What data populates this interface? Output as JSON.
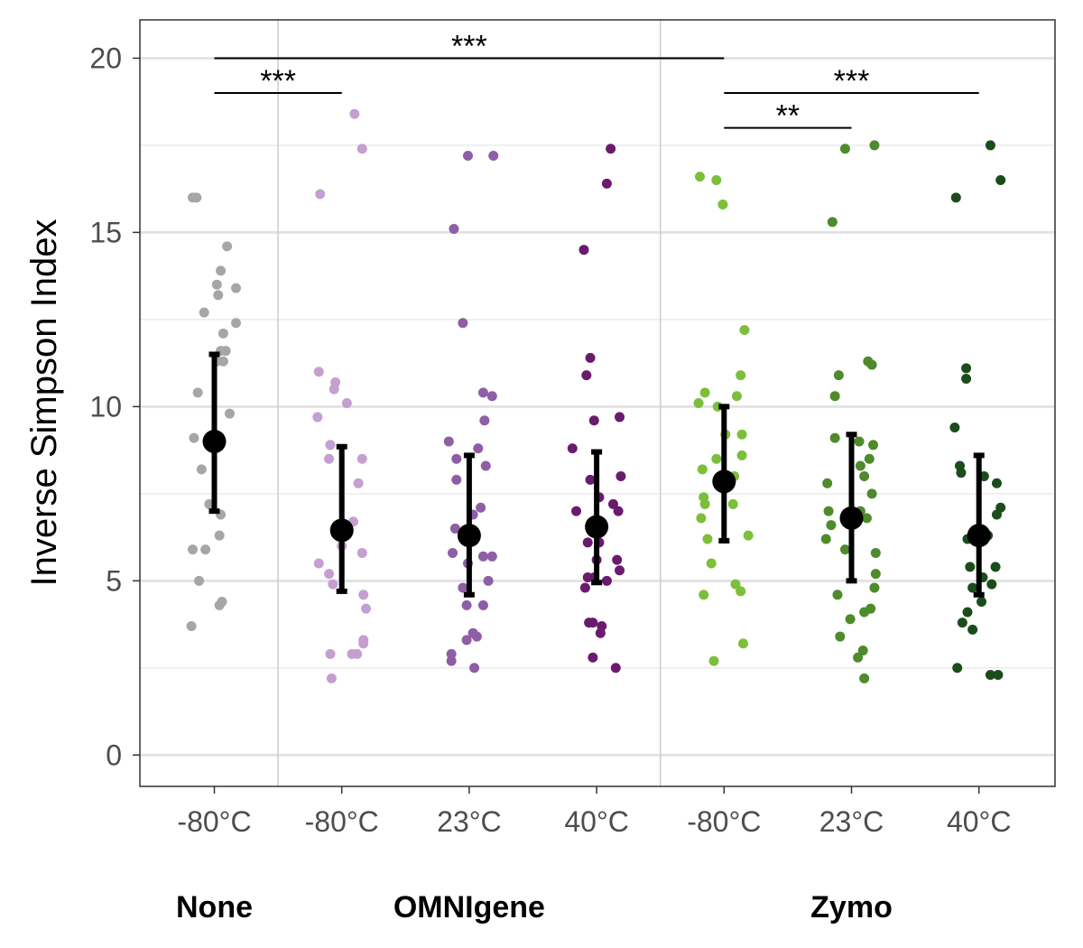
{
  "chart_data": {
    "type": "scatter",
    "ylabel": "Inverse Simpson Index",
    "ylim": [
      -0.9,
      21.1
    ],
    "yticks": [
      0,
      5,
      10,
      15,
      20
    ],
    "minor_gridlines": [
      2.5,
      7.5,
      12.5,
      17.5
    ],
    "categories": [
      "-80°C",
      "-80°C",
      "23°C",
      "40°C",
      "-80°C",
      "23°C",
      "40°C"
    ],
    "group_labels": [
      {
        "label": "None",
        "center": 1
      },
      {
        "label": "OMNIgene",
        "center": 3
      },
      {
        "label": "Zymo",
        "center": 6
      }
    ],
    "group_separators": [
      1.5,
      4.5
    ],
    "series": [
      {
        "group": "None",
        "condition": "-80°C",
        "color": "#a6a6a6",
        "mean": 9.0,
        "lower": 7.0,
        "upper": 11.5,
        "points": [
          [
            -0.17,
            16.0
          ],
          [
            -0.14,
            16.0
          ],
          [
            0.1,
            14.6
          ],
          [
            0.05,
            13.9
          ],
          [
            0.02,
            13.5
          ],
          [
            0.17,
            13.4
          ],
          [
            0.03,
            13.2
          ],
          [
            -0.08,
            12.7
          ],
          [
            0.17,
            12.4
          ],
          [
            0.07,
            12.1
          ],
          [
            0.05,
            11.6
          ],
          [
            0.09,
            11.6
          ],
          [
            0.02,
            11.3
          ],
          [
            0.07,
            11.3
          ],
          [
            -0.13,
            10.4
          ],
          [
            0.12,
            9.8
          ],
          [
            -0.16,
            9.1
          ],
          [
            -0.1,
            8.2
          ],
          [
            -0.04,
            7.2
          ],
          [
            0.05,
            6.9
          ],
          [
            0.04,
            6.3
          ],
          [
            -0.17,
            5.9
          ],
          [
            -0.07,
            5.9
          ],
          [
            -0.12,
            5.0
          ],
          [
            0.06,
            4.4
          ],
          [
            0.04,
            4.3
          ],
          [
            -0.18,
            3.7
          ]
        ]
      },
      {
        "group": "OMNIgene",
        "condition": "-80°C",
        "color": "#c49fcf",
        "mean": 6.45,
        "lower": 4.7,
        "upper": 8.85,
        "points": [
          [
            0.1,
            18.4
          ],
          [
            0.16,
            17.4
          ],
          [
            -0.17,
            16.1
          ],
          [
            -0.18,
            11.0
          ],
          [
            -0.05,
            10.7
          ],
          [
            -0.06,
            10.5
          ],
          [
            0.04,
            10.1
          ],
          [
            -0.19,
            9.7
          ],
          [
            -0.09,
            8.9
          ],
          [
            0.16,
            8.5
          ],
          [
            -0.1,
            8.5
          ],
          [
            0.13,
            7.8
          ],
          [
            0.09,
            6.7
          ],
          [
            0.0,
            6.0
          ],
          [
            0.16,
            5.8
          ],
          [
            -0.18,
            5.5
          ],
          [
            -0.1,
            5.2
          ],
          [
            -0.07,
            4.9
          ],
          [
            0.17,
            4.6
          ],
          [
            0.19,
            4.2
          ],
          [
            0.17,
            3.3
          ],
          [
            0.17,
            3.2
          ],
          [
            -0.09,
            2.9
          ],
          [
            0.08,
            2.9
          ],
          [
            0.12,
            2.9
          ],
          [
            -0.08,
            2.2
          ]
        ]
      },
      {
        "group": "OMNIgene",
        "condition": "23°C",
        "color": "#8e5ea6",
        "mean": 6.3,
        "lower": 4.6,
        "upper": 8.6,
        "points": [
          [
            -0.01,
            17.2
          ],
          [
            0.19,
            17.2
          ],
          [
            -0.12,
            15.1
          ],
          [
            -0.05,
            12.4
          ],
          [
            0.11,
            10.4
          ],
          [
            0.18,
            10.3
          ],
          [
            0.12,
            9.6
          ],
          [
            -0.16,
            9.0
          ],
          [
            0.07,
            8.8
          ],
          [
            -0.1,
            8.5
          ],
          [
            0.13,
            8.3
          ],
          [
            -0.1,
            7.9
          ],
          [
            0.09,
            7.1
          ],
          [
            0.03,
            6.9
          ],
          [
            -0.11,
            6.5
          ],
          [
            -0.13,
            5.8
          ],
          [
            0.11,
            5.7
          ],
          [
            0.18,
            5.7
          ],
          [
            -0.01,
            5.5
          ],
          [
            0.15,
            5.0
          ],
          [
            -0.05,
            4.8
          ],
          [
            0.11,
            4.3
          ],
          [
            -0.02,
            4.3
          ],
          [
            0.03,
            3.5
          ],
          [
            -0.02,
            3.3
          ],
          [
            0.06,
            3.4
          ],
          [
            -0.14,
            2.9
          ],
          [
            -0.14,
            2.7
          ],
          [
            0.04,
            2.5
          ]
        ]
      },
      {
        "group": "OMNIgene",
        "condition": "40°C",
        "color": "#6a1b6e",
        "mean": 6.55,
        "lower": 4.95,
        "upper": 8.7,
        "points": [
          [
            0.11,
            17.4
          ],
          [
            0.08,
            16.4
          ],
          [
            -0.1,
            14.5
          ],
          [
            -0.05,
            11.4
          ],
          [
            -0.08,
            10.9
          ],
          [
            0.18,
            9.7
          ],
          [
            -0.02,
            9.6
          ],
          [
            -0.19,
            8.8
          ],
          [
            0.19,
            8.0
          ],
          [
            -0.05,
            7.9
          ],
          [
            0.02,
            7.4
          ],
          [
            0.13,
            7.2
          ],
          [
            0.17,
            7.0
          ],
          [
            -0.16,
            7.0
          ],
          [
            -0.07,
            6.1
          ],
          [
            0.02,
            6.1
          ],
          [
            0.0,
            5.6
          ],
          [
            0.16,
            5.6
          ],
          [
            0.18,
            5.3
          ],
          [
            -0.07,
            5.1
          ],
          [
            -0.02,
            5.1
          ],
          [
            0.08,
            5.0
          ],
          [
            -0.09,
            4.8
          ],
          [
            -0.03,
            3.8
          ],
          [
            -0.06,
            3.8
          ],
          [
            0.04,
            3.7
          ],
          [
            0.03,
            3.5
          ],
          [
            -0.03,
            2.8
          ],
          [
            0.15,
            2.5
          ]
        ]
      },
      {
        "group": "Zymo",
        "condition": "-80°C",
        "color": "#7bbf3a",
        "mean": 7.85,
        "lower": 6.15,
        "upper": 10.0,
        "points": [
          [
            -0.19,
            16.6
          ],
          [
            -0.06,
            16.5
          ],
          [
            -0.01,
            15.8
          ],
          [
            0.16,
            12.2
          ],
          [
            -0.15,
            10.4
          ],
          [
            0.13,
            10.9
          ],
          [
            0.1,
            10.3
          ],
          [
            -0.2,
            10.1
          ],
          [
            -0.05,
            10.0
          ],
          [
            0.14,
            9.2
          ],
          [
            0.01,
            9.2
          ],
          [
            -0.06,
            8.5
          ],
          [
            0.14,
            8.6
          ],
          [
            -0.17,
            8.2
          ],
          [
            0.08,
            8.0
          ],
          [
            0.07,
            7.2
          ],
          [
            -0.16,
            7.4
          ],
          [
            -0.15,
            7.2
          ],
          [
            -0.18,
            6.8
          ],
          [
            0.19,
            6.3
          ],
          [
            -0.13,
            6.2
          ],
          [
            -0.1,
            5.5
          ],
          [
            0.09,
            4.9
          ],
          [
            0.13,
            4.7
          ],
          [
            -0.16,
            4.6
          ],
          [
            0.15,
            3.2
          ],
          [
            -0.08,
            2.7
          ]
        ]
      },
      {
        "group": "Zymo",
        "condition": "23°C",
        "color": "#4d8b2b",
        "mean": 6.8,
        "lower": 5.0,
        "upper": 9.2,
        "points": [
          [
            -0.05,
            17.4
          ],
          [
            0.18,
            17.5
          ],
          [
            -0.15,
            15.3
          ],
          [
            0.13,
            11.3
          ],
          [
            0.16,
            11.2
          ],
          [
            -0.1,
            10.9
          ],
          [
            -0.13,
            10.3
          ],
          [
            -0.13,
            9.1
          ],
          [
            0.06,
            9.0
          ],
          [
            0.17,
            8.9
          ],
          [
            0.14,
            8.5
          ],
          [
            0.07,
            8.3
          ],
          [
            0.1,
            8.0
          ],
          [
            -0.19,
            7.8
          ],
          [
            0.16,
            7.5
          ],
          [
            -0.18,
            7.0
          ],
          [
            0.07,
            7.0
          ],
          [
            0.12,
            6.8
          ],
          [
            -0.16,
            6.6
          ],
          [
            -0.2,
            6.2
          ],
          [
            0.19,
            5.8
          ],
          [
            -0.05,
            5.9
          ],
          [
            0.19,
            5.2
          ],
          [
            0.18,
            4.8
          ],
          [
            -0.11,
            4.6
          ],
          [
            0.1,
            4.1
          ],
          [
            0.15,
            4.2
          ],
          [
            -0.01,
            3.9
          ],
          [
            -0.09,
            3.4
          ],
          [
            0.09,
            3.0
          ],
          [
            0.05,
            2.8
          ],
          [
            0.1,
            2.2
          ]
        ]
      },
      {
        "group": "Zymo",
        "condition": "40°C",
        "color": "#1b4d1b",
        "mean": 6.3,
        "lower": 4.6,
        "upper": 8.6,
        "points": [
          [
            0.09,
            17.5
          ],
          [
            0.17,
            16.5
          ],
          [
            -0.18,
            16.0
          ],
          [
            -0.1,
            11.1
          ],
          [
            -0.1,
            10.8
          ],
          [
            -0.19,
            9.4
          ],
          [
            -0.15,
            8.3
          ],
          [
            -0.14,
            8.1
          ],
          [
            0.04,
            8.0
          ],
          [
            0.14,
            7.8
          ],
          [
            0.17,
            7.1
          ],
          [
            0.14,
            6.9
          ],
          [
            -0.09,
            6.2
          ],
          [
            0.07,
            6.3
          ],
          [
            0.13,
            5.4
          ],
          [
            -0.07,
            5.4
          ],
          [
            0.03,
            5.1
          ],
          [
            0.1,
            4.9
          ],
          [
            -0.05,
            4.8
          ],
          [
            0.02,
            4.4
          ],
          [
            -0.09,
            4.1
          ],
          [
            -0.13,
            3.8
          ],
          [
            -0.05,
            3.6
          ],
          [
            -0.17,
            2.5
          ],
          [
            0.09,
            2.3
          ],
          [
            0.15,
            2.3
          ]
        ]
      }
    ],
    "significance": [
      {
        "label": "***",
        "from": 1,
        "to": 2,
        "y": 19.0
      },
      {
        "label": "***",
        "from": 1,
        "to": 5,
        "y": 20.0
      },
      {
        "label": "***",
        "from": 5,
        "to": 7,
        "y": 19.0
      },
      {
        "label": "**",
        "from": 5,
        "to": 6,
        "y": 18.0
      }
    ]
  }
}
